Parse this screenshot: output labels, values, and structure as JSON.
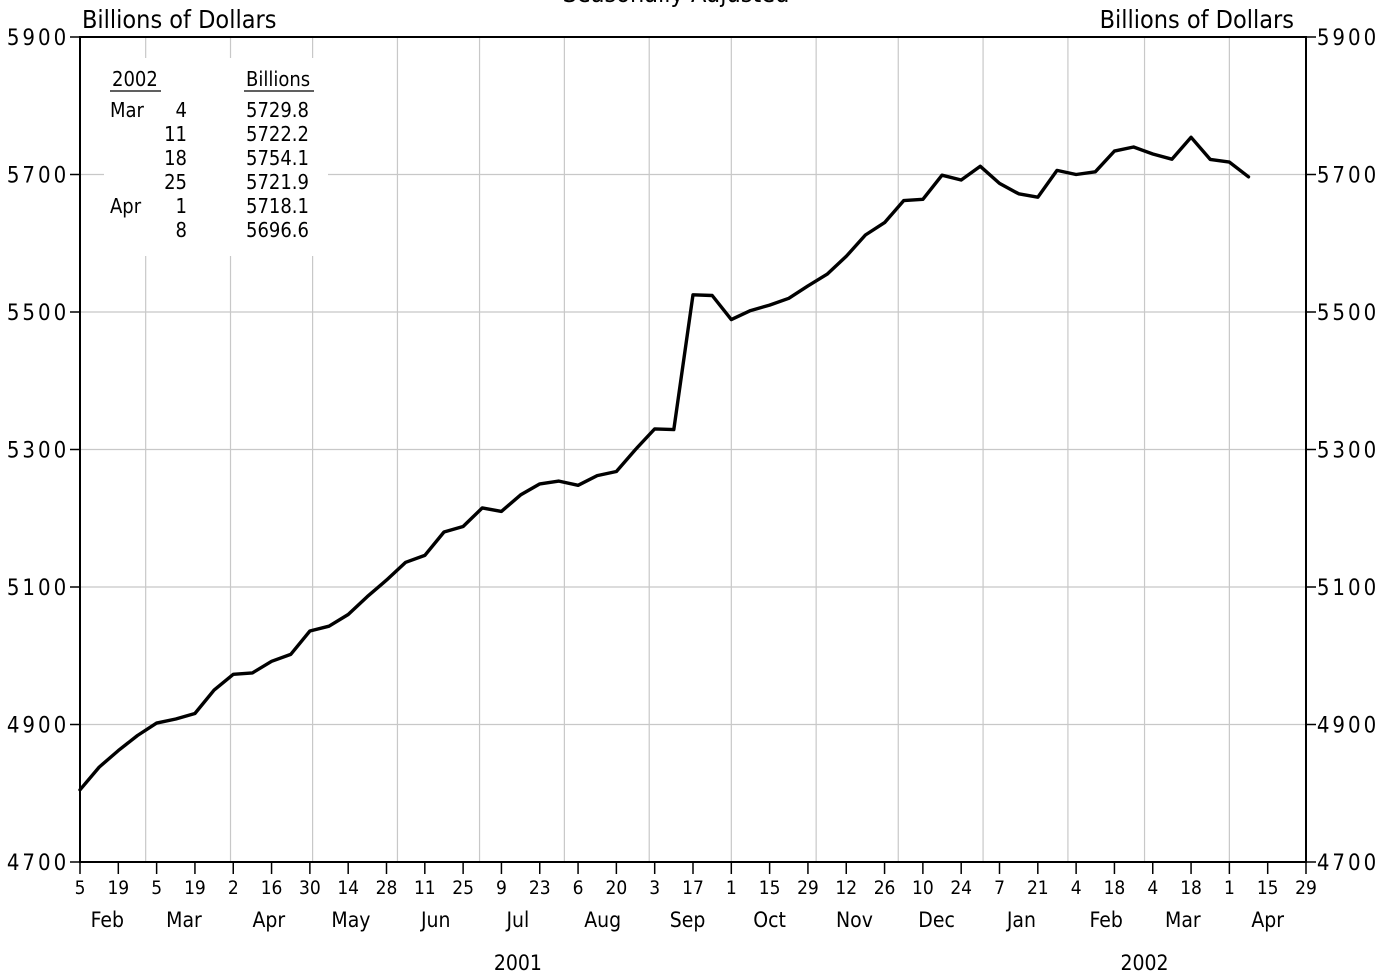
{
  "chart_data": {
    "type": "line",
    "title": "Seasonally Adjusted",
    "ylabel_left": "Billions of Dollars",
    "ylabel_right": "Billions of Dollars",
    "ylim": [
      4700,
      5900
    ],
    "yticks": [
      4700,
      4900,
      5100,
      5300,
      5500,
      5700,
      5900
    ],
    "ytick_labels": [
      "4700",
      "4900",
      "5100",
      "5300",
      "5500",
      "5700",
      "5900"
    ],
    "xlim": [
      "2001-02-05",
      "2002-04-29"
    ],
    "grid": true,
    "xticks": [
      {
        "date": "2001-02-05",
        "label": "5"
      },
      {
        "date": "2001-02-19",
        "label": "19"
      },
      {
        "date": "2001-03-05",
        "label": "5"
      },
      {
        "date": "2001-03-19",
        "label": "19"
      },
      {
        "date": "2001-04-02",
        "label": "2"
      },
      {
        "date": "2001-04-16",
        "label": "16"
      },
      {
        "date": "2001-04-30",
        "label": "30"
      },
      {
        "date": "2001-05-14",
        "label": "14"
      },
      {
        "date": "2001-05-28",
        "label": "28"
      },
      {
        "date": "2001-06-11",
        "label": "11"
      },
      {
        "date": "2001-06-25",
        "label": "25"
      },
      {
        "date": "2001-07-09",
        "label": "9"
      },
      {
        "date": "2001-07-23",
        "label": "23"
      },
      {
        "date": "2001-08-06",
        "label": "6"
      },
      {
        "date": "2001-08-20",
        "label": "20"
      },
      {
        "date": "2001-09-03",
        "label": "3"
      },
      {
        "date": "2001-09-17",
        "label": "17"
      },
      {
        "date": "2001-10-01",
        "label": "1"
      },
      {
        "date": "2001-10-15",
        "label": "15"
      },
      {
        "date": "2001-10-29",
        "label": "29"
      },
      {
        "date": "2001-11-12",
        "label": "12"
      },
      {
        "date": "2001-11-26",
        "label": "26"
      },
      {
        "date": "2001-12-10",
        "label": "10"
      },
      {
        "date": "2001-12-24",
        "label": "24"
      },
      {
        "date": "2002-01-07",
        "label": "7"
      },
      {
        "date": "2002-01-21",
        "label": "21"
      },
      {
        "date": "2002-02-04",
        "label": "4"
      },
      {
        "date": "2002-02-18",
        "label": "18"
      },
      {
        "date": "2002-03-04",
        "label": "4"
      },
      {
        "date": "2002-03-18",
        "label": "18"
      },
      {
        "date": "2002-04-01",
        "label": "1"
      },
      {
        "date": "2002-04-15",
        "label": "15"
      },
      {
        "date": "2002-04-29",
        "label": "29"
      }
    ],
    "month_labels": [
      {
        "date": "2001-02-15",
        "label": "Feb"
      },
      {
        "date": "2001-03-15",
        "label": "Mar"
      },
      {
        "date": "2001-04-15",
        "label": "Apr"
      },
      {
        "date": "2001-05-15",
        "label": "May"
      },
      {
        "date": "2001-06-15",
        "label": "Jun"
      },
      {
        "date": "2001-07-15",
        "label": "Jul"
      },
      {
        "date": "2001-08-15",
        "label": "Aug"
      },
      {
        "date": "2001-09-15",
        "label": "Sep"
      },
      {
        "date": "2001-10-15",
        "label": "Oct"
      },
      {
        "date": "2001-11-15",
        "label": "Nov"
      },
      {
        "date": "2001-12-15",
        "label": "Dec"
      },
      {
        "date": "2002-01-15",
        "label": "Jan"
      },
      {
        "date": "2002-02-15",
        "label": "Feb"
      },
      {
        "date": "2002-03-15",
        "label": "Mar"
      },
      {
        "date": "2002-04-15",
        "label": "Apr"
      }
    ],
    "month_boundaries": [
      "2001-03-01",
      "2001-04-01",
      "2001-05-01",
      "2001-06-01",
      "2001-07-01",
      "2001-08-01",
      "2001-09-01",
      "2001-10-01",
      "2001-11-01",
      "2001-12-01",
      "2002-01-01",
      "2002-02-01",
      "2002-03-01",
      "2002-04-01"
    ],
    "year_labels": [
      {
        "date": "2001-07-15",
        "label": "2001"
      },
      {
        "date": "2002-03-01",
        "label": "2002"
      }
    ],
    "series": [
      {
        "x": [
          "2001-02-05",
          "2001-02-12",
          "2001-02-19",
          "2001-02-26",
          "2001-03-05",
          "2001-03-12",
          "2001-03-19",
          "2001-03-26",
          "2001-04-02",
          "2001-04-09",
          "2001-04-16",
          "2001-04-23",
          "2001-04-30",
          "2001-05-07",
          "2001-05-14",
          "2001-05-21",
          "2001-05-28",
          "2001-06-04",
          "2001-06-11",
          "2001-06-18",
          "2001-06-25",
          "2001-07-02",
          "2001-07-09",
          "2001-07-16",
          "2001-07-23",
          "2001-07-30",
          "2001-08-06",
          "2001-08-13",
          "2001-08-20",
          "2001-08-27",
          "2001-09-03",
          "2001-09-10",
          "2001-09-17",
          "2001-09-24",
          "2001-10-01",
          "2001-10-08",
          "2001-10-15",
          "2001-10-22",
          "2001-10-29",
          "2001-11-05",
          "2001-11-12",
          "2001-11-19",
          "2001-11-26",
          "2001-12-03",
          "2001-12-10",
          "2001-12-17",
          "2001-12-24",
          "2001-12-31",
          "2002-01-07",
          "2002-01-14",
          "2002-01-21",
          "2002-01-28",
          "2002-02-04",
          "2002-02-11",
          "2002-02-18",
          "2002-02-25",
          "2002-03-04",
          "2002-03-11",
          "2002-03-18",
          "2002-03-25",
          "2002-04-01",
          "2002-04-08"
        ],
        "values": [
          4805,
          4838,
          4862,
          4884,
          4902,
          4908,
          4916,
          4950,
          4973,
          4975,
          4992,
          5002,
          5036,
          5043,
          5060,
          5086,
          5110,
          5136,
          5146,
          5180,
          5188,
          5215,
          5210,
          5234,
          5250,
          5254,
          5248,
          5262,
          5268,
          5300,
          5330,
          5329,
          5525,
          5524,
          5489,
          5502,
          5510,
          5520,
          5538,
          5555,
          5581,
          5612,
          5630,
          5662,
          5664,
          5699,
          5692,
          5712,
          5687,
          5672,
          5667,
          5706,
          5700,
          5704,
          5734,
          5740,
          5729.8,
          5722.2,
          5754.1,
          5721.9,
          5718.1,
          5696.6
        ]
      }
    ],
    "inset_table": {
      "headers": [
        "2002",
        "Billions"
      ],
      "rows": [
        {
          "month": "Mar",
          "day": "4",
          "value": "5729.8"
        },
        {
          "month": "",
          "day": "11",
          "value": "5722.2"
        },
        {
          "month": "",
          "day": "18",
          "value": "5754.1"
        },
        {
          "month": "",
          "day": "25",
          "value": "5721.9"
        },
        {
          "month": "Apr",
          "day": "1",
          "value": "5718.1"
        },
        {
          "month": "",
          "day": "8",
          "value": "5696.6"
        }
      ]
    },
    "colors": {
      "line": "#000000",
      "grid": "#c8c8c8",
      "axis": "#000000"
    }
  }
}
